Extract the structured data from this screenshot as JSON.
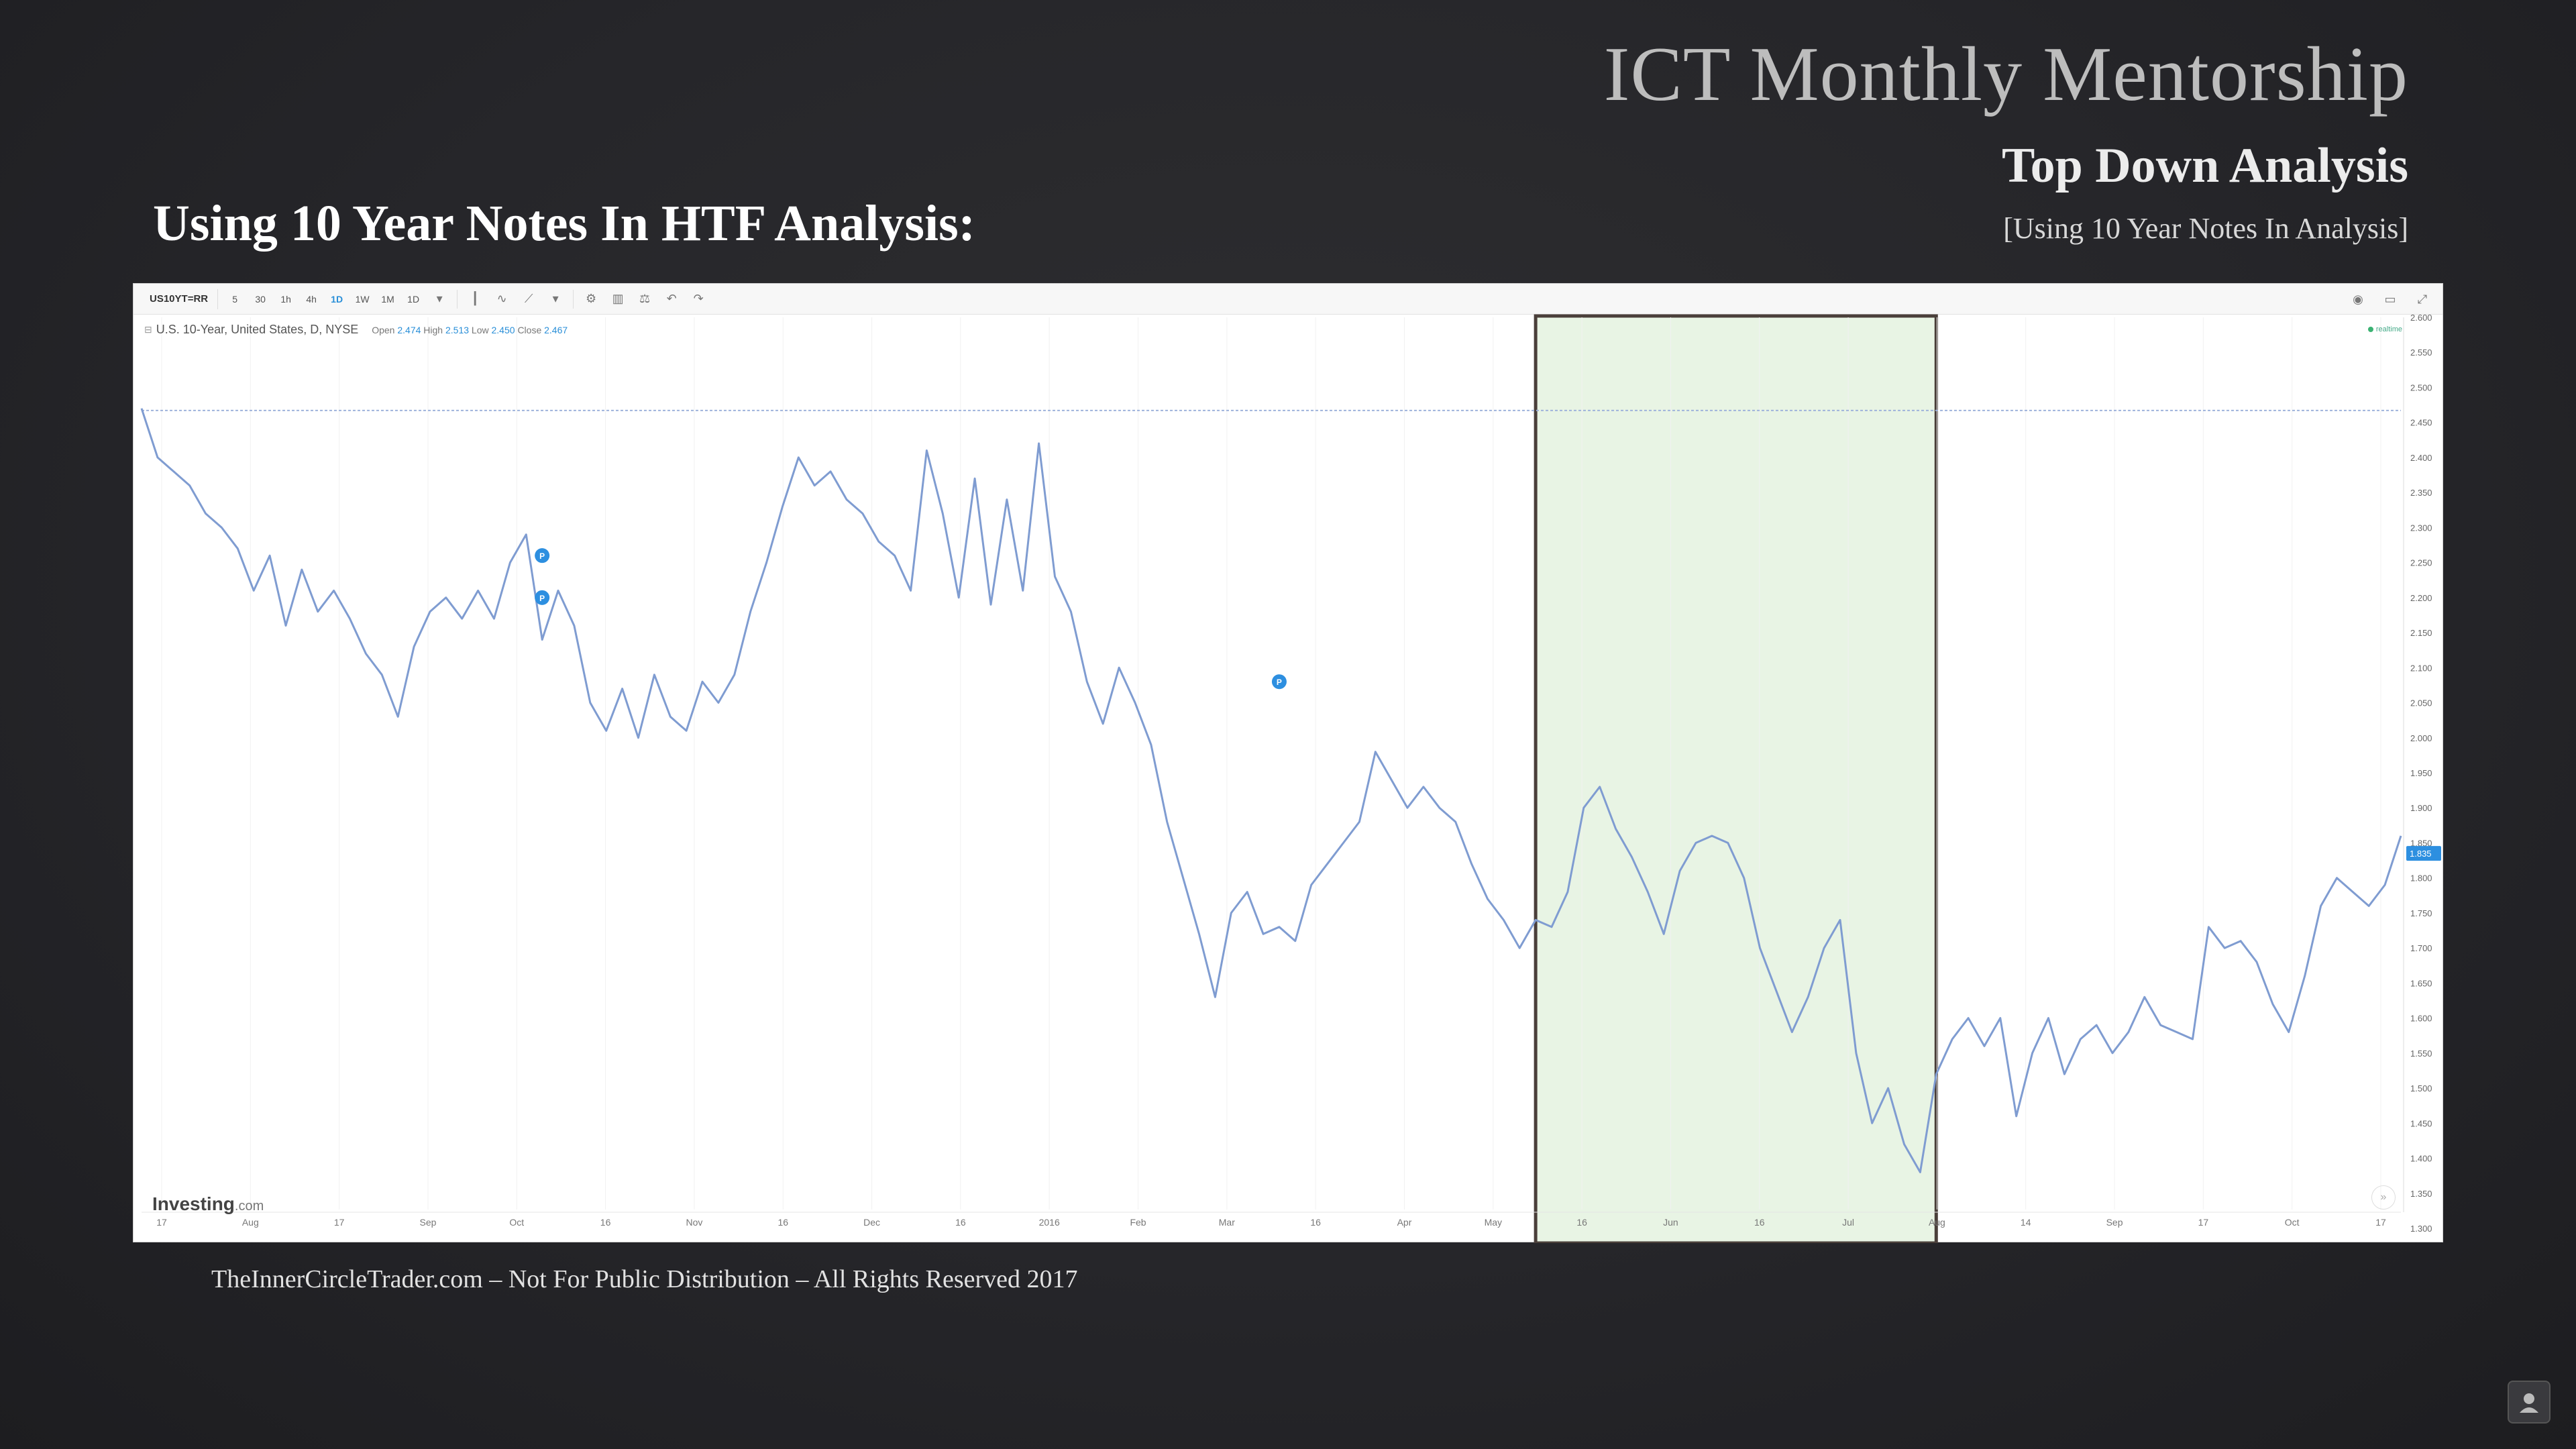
{
  "slide": {
    "title_main": "ICT Monthly Mentorship",
    "title_sub": "Top Down Analysis",
    "title_bracket": "[Using 10 Year Notes In Analysis]",
    "heading": "Using 10 Year Notes In HTF Analysis:",
    "footer": "TheInnerCircleTrader.com – Not For Public Distribution – All Rights Reserved 2017"
  },
  "toolbar": {
    "symbol": "US10YT=RR",
    "intervals": [
      "5",
      "30",
      "1h",
      "4h",
      "1D",
      "1W",
      "1M"
    ],
    "active_interval": "1D",
    "range_label": "1D"
  },
  "legend": {
    "instrument": "U.S. 10-Year, United States, D, NYSE",
    "open_label": "Open",
    "open": "2.474",
    "high_label": "High",
    "high": "2.513",
    "low_label": "Low",
    "low": "2.450",
    "close_label": "Close",
    "close": "2.467",
    "realtime": "realtime"
  },
  "watermark": {
    "brand": "Investing",
    "suffix": ".com"
  },
  "chart_data": {
    "type": "line",
    "series": [
      {
        "values": [
          2.47,
          2.4,
          2.38,
          2.36,
          2.32,
          2.3,
          2.27,
          2.21,
          2.26,
          2.16,
          2.24,
          2.18,
          2.21,
          2.17,
          2.12,
          2.09,
          2.03,
          2.13,
          2.18,
          2.2,
          2.17,
          2.21,
          2.17,
          2.25,
          2.29,
          2.14,
          2.21,
          2.16,
          2.05,
          2.01,
          2.07,
          2.0,
          2.09,
          2.03,
          2.01,
          2.08,
          2.05,
          2.09,
          2.18,
          2.25,
          2.33,
          2.4,
          2.36,
          2.38,
          2.34,
          2.32,
          2.28,
          2.26,
          2.21,
          2.41,
          2.32,
          2.2,
          2.37,
          2.19,
          2.34,
          2.21,
          2.42,
          2.23,
          2.18,
          2.08,
          2.02,
          2.1,
          2.05,
          1.99,
          1.88,
          1.8,
          1.72,
          1.63,
          1.75,
          1.78,
          1.72,
          1.73,
          1.71,
          1.79,
          1.82,
          1.85,
          1.88,
          1.98,
          1.94,
          1.9,
          1.93,
          1.9,
          1.88,
          1.82,
          1.77,
          1.74,
          1.7,
          1.74,
          1.73,
          1.78,
          1.9,
          1.93,
          1.87,
          1.83,
          1.78,
          1.72,
          1.81,
          1.85,
          1.86,
          1.85,
          1.8,
          1.7,
          1.64,
          1.58,
          1.63,
          1.7,
          1.74,
          1.55,
          1.45,
          1.5,
          1.42,
          1.38,
          1.52,
          1.57,
          1.6,
          1.56,
          1.6,
          1.46,
          1.55,
          1.6,
          1.52,
          1.57,
          1.59,
          1.55,
          1.58,
          1.63,
          1.59,
          1.58,
          1.57,
          1.73,
          1.7,
          1.71,
          1.68,
          1.62,
          1.58,
          1.66,
          1.76,
          1.8,
          1.78,
          1.76,
          1.79,
          1.86
        ]
      }
    ],
    "x_tick_labels": [
      "17",
      "Aug",
      "17",
      "Sep",
      "Oct",
      "16",
      "Nov",
      "16",
      "Dec",
      "16",
      "2016",
      "Feb",
      "Mar",
      "16",
      "Apr",
      "May",
      "16",
      "Jun",
      "16",
      "Jul",
      "Aug",
      "14",
      "Sep",
      "17",
      "Oct",
      "17"
    ],
    "y_tick_labels": [
      "2.600",
      "2.550",
      "2.500",
      "2.450",
      "2.400",
      "2.350",
      "2.300",
      "2.250",
      "2.200",
      "2.150",
      "2.100",
      "2.050",
      "2.000",
      "1.950",
      "1.900",
      "1.850",
      "1.800",
      "1.750",
      "1.700",
      "1.650",
      "1.600",
      "1.550",
      "1.500",
      "1.450",
      "1.400",
      "1.350",
      "1.300"
    ],
    "ylim": [
      1.3,
      2.6
    ],
    "current_value": "1.835",
    "reference_line": 2.467,
    "highlight_region": {
      "from_index": 87,
      "to_index": 112
    },
    "markers": [
      {
        "index": 25,
        "value": 2.26,
        "label": "P"
      },
      {
        "index": 25,
        "value": 2.2,
        "label": "P"
      },
      {
        "index": 71,
        "value": 2.08,
        "label": "P"
      }
    ],
    "line_color": "#7f9cd1",
    "highlight_color": "#e8f4e4",
    "highlight_border": "#4a3f3a",
    "marker_color": "#2d8fe0"
  }
}
